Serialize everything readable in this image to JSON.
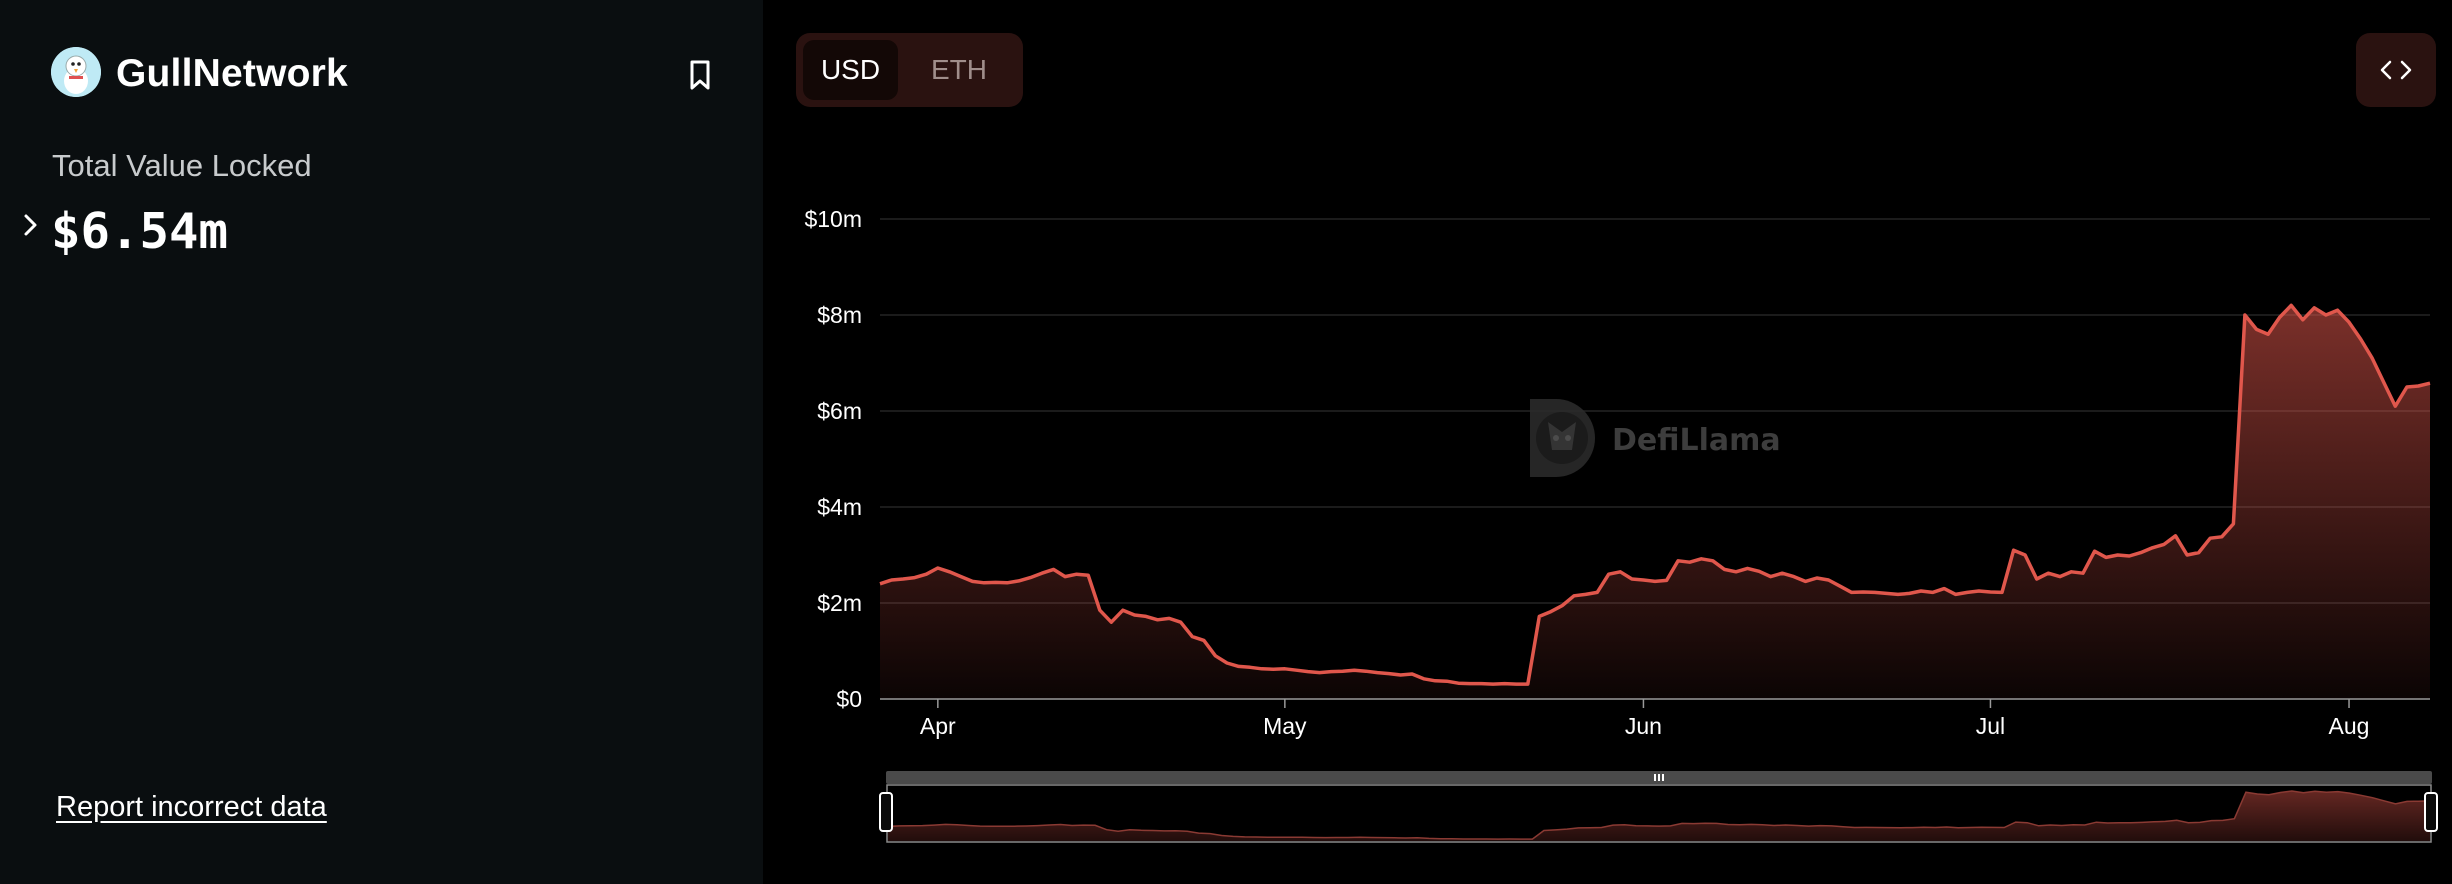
{
  "protocol": {
    "name": "GullNetwork",
    "metric_label": "Total Value Locked",
    "metric_value": "$6.54m",
    "report_link": "Report incorrect data"
  },
  "toggle": {
    "options": [
      "USD",
      "ETH"
    ],
    "selected": "USD"
  },
  "icons": {
    "logo": "gull-logo-icon",
    "bookmark": "bookmark-icon",
    "expand": "chevron-right-icon",
    "embed": "code-embed-icon",
    "watermark": "defillama-logo-icon"
  },
  "watermark": "DefiLlama",
  "colors": {
    "line": "#e0574c",
    "panel_bg": "#0a0e10",
    "chart_bg": "#000000",
    "toggle_bg": "#2a1210"
  },
  "chart_data": {
    "type": "area",
    "title": "",
    "xlabel": "",
    "ylabel": "",
    "x_start": "2024-03-27",
    "x_end": "2024-08-08",
    "x_ticks": [
      "Apr",
      "May",
      "Jun",
      "Jul",
      "Aug"
    ],
    "x_tick_dates": [
      "2024-04-01",
      "2024-05-01",
      "2024-06-01",
      "2024-07-01",
      "2024-08-01"
    ],
    "y_ticks": [
      "$0",
      "$2m",
      "$4m",
      "$6m",
      "$8m",
      "$10m"
    ],
    "y_tick_values": [
      0,
      2,
      4,
      6,
      8,
      10
    ],
    "ylim": [
      0,
      10
    ],
    "y_unit": "USD millions",
    "grid": true,
    "series": [
      {
        "values": [
          [
            0,
            2.4
          ],
          [
            1,
            2.48
          ],
          [
            2,
            2.5
          ],
          [
            3,
            2.53
          ],
          [
            4,
            2.6
          ],
          [
            5,
            2.73
          ],
          [
            6,
            2.65
          ],
          [
            7,
            2.55
          ],
          [
            8,
            2.45
          ],
          [
            9,
            2.42
          ],
          [
            10,
            2.43
          ],
          [
            11,
            2.42
          ],
          [
            12,
            2.46
          ],
          [
            13,
            2.53
          ],
          [
            14,
            2.62
          ],
          [
            15,
            2.7
          ],
          [
            16,
            2.55
          ],
          [
            17,
            2.6
          ],
          [
            18,
            2.58
          ],
          [
            19,
            1.85
          ],
          [
            20,
            1.6
          ],
          [
            21,
            1.85
          ],
          [
            22,
            1.75
          ],
          [
            23,
            1.72
          ],
          [
            24,
            1.65
          ],
          [
            25,
            1.68
          ],
          [
            26,
            1.6
          ],
          [
            27,
            1.3
          ],
          [
            28,
            1.22
          ],
          [
            29,
            0.9
          ],
          [
            30,
            0.75
          ],
          [
            31,
            0.68
          ],
          [
            32,
            0.66
          ],
          [
            33,
            0.63
          ],
          [
            34,
            0.62
          ],
          [
            35,
            0.63
          ],
          [
            36,
            0.6
          ],
          [
            37,
            0.57
          ],
          [
            38,
            0.55
          ],
          [
            39,
            0.57
          ],
          [
            40,
            0.58
          ],
          [
            41,
            0.6
          ],
          [
            42,
            0.58
          ],
          [
            43,
            0.55
          ],
          [
            44,
            0.53
          ],
          [
            45,
            0.5
          ],
          [
            46,
            0.52
          ],
          [
            47,
            0.42
          ],
          [
            48,
            0.38
          ],
          [
            49,
            0.37
          ],
          [
            50,
            0.33
          ],
          [
            51,
            0.32
          ],
          [
            52,
            0.32
          ],
          [
            53,
            0.31
          ],
          [
            54,
            0.32
          ],
          [
            55,
            0.31
          ],
          [
            56,
            0.31
          ],
          [
            57,
            1.72
          ],
          [
            58,
            1.82
          ],
          [
            59,
            1.95
          ],
          [
            60,
            2.15
          ],
          [
            61,
            2.18
          ],
          [
            62,
            2.22
          ],
          [
            63,
            2.6
          ],
          [
            64,
            2.65
          ],
          [
            65,
            2.5
          ],
          [
            66,
            2.48
          ],
          [
            67,
            2.45
          ],
          [
            68,
            2.47
          ],
          [
            69,
            2.88
          ],
          [
            70,
            2.85
          ],
          [
            71,
            2.92
          ],
          [
            72,
            2.88
          ],
          [
            73,
            2.7
          ],
          [
            74,
            2.65
          ],
          [
            75,
            2.72
          ],
          [
            76,
            2.66
          ],
          [
            77,
            2.55
          ],
          [
            78,
            2.62
          ],
          [
            79,
            2.55
          ],
          [
            80,
            2.45
          ],
          [
            81,
            2.52
          ],
          [
            82,
            2.48
          ],
          [
            83,
            2.35
          ],
          [
            84,
            2.22
          ],
          [
            85,
            2.23
          ],
          [
            86,
            2.22
          ],
          [
            87,
            2.2
          ],
          [
            88,
            2.18
          ],
          [
            89,
            2.2
          ],
          [
            90,
            2.25
          ],
          [
            91,
            2.22
          ],
          [
            92,
            2.3
          ],
          [
            93,
            2.18
          ],
          [
            94,
            2.22
          ],
          [
            95,
            2.25
          ],
          [
            96,
            2.23
          ],
          [
            97,
            2.22
          ],
          [
            98,
            3.1
          ],
          [
            99,
            3.0
          ],
          [
            100,
            2.5
          ],
          [
            101,
            2.62
          ],
          [
            102,
            2.55
          ],
          [
            103,
            2.65
          ],
          [
            104,
            2.62
          ],
          [
            105,
            3.08
          ],
          [
            106,
            2.95
          ],
          [
            107,
            3.0
          ],
          [
            108,
            2.98
          ],
          [
            109,
            3.05
          ],
          [
            110,
            3.15
          ],
          [
            111,
            3.22
          ],
          [
            112,
            3.4
          ],
          [
            113,
            3.0
          ],
          [
            114,
            3.05
          ],
          [
            115,
            3.35
          ],
          [
            116,
            3.38
          ],
          [
            117,
            3.65
          ],
          [
            118,
            8.0
          ],
          [
            119,
            7.7
          ],
          [
            120,
            7.6
          ],
          [
            121,
            7.95
          ],
          [
            122,
            8.2
          ],
          [
            123,
            7.9
          ],
          [
            124,
            8.15
          ],
          [
            125,
            8.0
          ],
          [
            126,
            8.1
          ],
          [
            127,
            7.85
          ],
          [
            128,
            7.5
          ],
          [
            129,
            7.1
          ],
          [
            130,
            6.6
          ],
          [
            131,
            6.1
          ],
          [
            132,
            6.5
          ],
          [
            133,
            6.52
          ],
          [
            134,
            6.58
          ]
        ]
      }
    ]
  }
}
